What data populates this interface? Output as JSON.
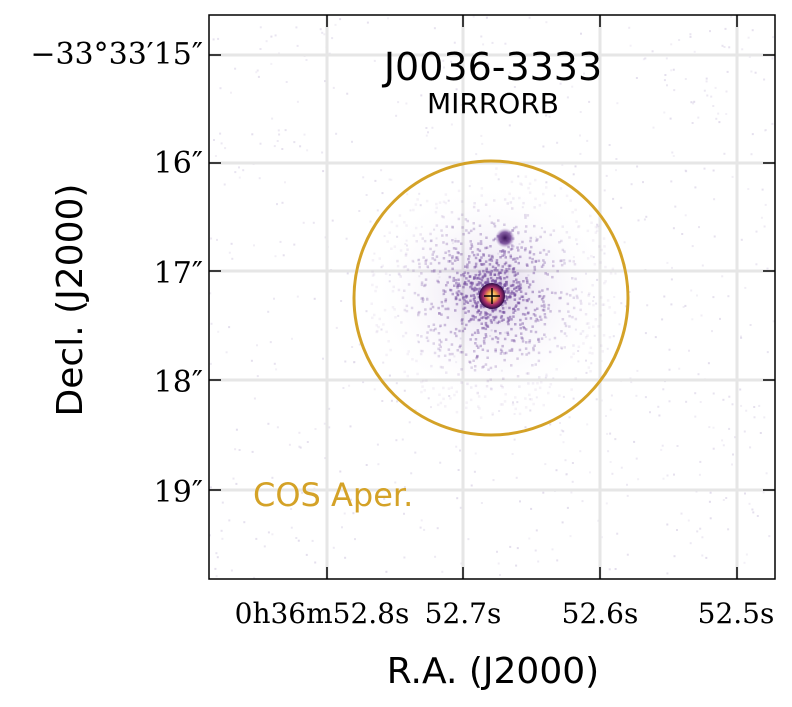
{
  "title": "J0036-3333",
  "subtitle": "MIRRORB",
  "xlabel": "R.A. (J2000)",
  "ylabel": "Decl. (J2000)",
  "aperture_label": "COS Aper.",
  "colors": {
    "aperture": "#d4a227",
    "grid": "#e6e6e6",
    "axes": "#000000",
    "source": "#4b1a6e",
    "core": "#f2d24a"
  },
  "y_ticks": [
    {
      "label": "−33°33′15″"
    },
    {
      "label": "16″"
    },
    {
      "label": "17″"
    },
    {
      "label": "18″"
    },
    {
      "label": "19″"
    }
  ],
  "x_ticks": [
    {
      "label": "0h36m52.8s"
    },
    {
      "label": "52.7s"
    },
    {
      "label": "52.6s"
    },
    {
      "label": "52.5s"
    }
  ]
}
